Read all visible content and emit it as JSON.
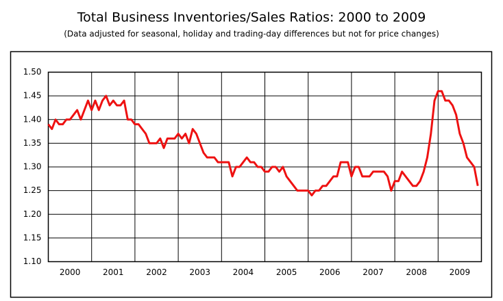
{
  "chart_data": {
    "type": "line",
    "title": "Total Business Inventories/Sales Ratios: 2000 to 2009",
    "subtitle": "(Data adjusted for seasonal, holiday and trading-day differences but not for price changes)",
    "categories": [
      null,
      null,
      null,
      null,
      null,
      null,
      "2000",
      null,
      null,
      null,
      null,
      null,
      null,
      null,
      null,
      null,
      null,
      null,
      "2001",
      null,
      null,
      null,
      null,
      null,
      null,
      null,
      null,
      null,
      null,
      null,
      "2002",
      null,
      null,
      null,
      null,
      null,
      null,
      null,
      null,
      null,
      null,
      null,
      "2003",
      null,
      null,
      null,
      null,
      null,
      null,
      null,
      null,
      null,
      null,
      null,
      "2004",
      null,
      null,
      null,
      null,
      null,
      null,
      null,
      null,
      null,
      null,
      null,
      "2005",
      null,
      null,
      null,
      null,
      null,
      null,
      null,
      null,
      null,
      null,
      null,
      "2006",
      null,
      null,
      null,
      null,
      null,
      null,
      null,
      null,
      null,
      null,
      null,
      "2007",
      null,
      null,
      null,
      null,
      null,
      null,
      null,
      null,
      null,
      null,
      null,
      "2008",
      null,
      null,
      null,
      null,
      null,
      null,
      null,
      null,
      null,
      null,
      null,
      "2009",
      null,
      null,
      null,
      null,
      null
    ],
    "series": [
      {
        "name": "Inventories/Sales Ratio",
        "color": "#ee1111",
        "values": [
          1.39,
          1.38,
          1.4,
          1.39,
          1.39,
          1.4,
          1.4,
          1.41,
          1.42,
          1.4,
          1.42,
          1.44,
          1.42,
          1.44,
          1.42,
          1.44,
          1.45,
          1.43,
          1.44,
          1.43,
          1.43,
          1.44,
          1.4,
          1.4,
          1.39,
          1.39,
          1.38,
          1.37,
          1.35,
          1.35,
          1.35,
          1.36,
          1.34,
          1.36,
          1.36,
          1.36,
          1.37,
          1.36,
          1.37,
          1.35,
          1.38,
          1.37,
          1.35,
          1.33,
          1.32,
          1.32,
          1.32,
          1.31,
          1.31,
          1.31,
          1.31,
          1.28,
          1.3,
          1.3,
          1.31,
          1.32,
          1.31,
          1.31,
          1.3,
          1.3,
          1.29,
          1.29,
          1.3,
          1.3,
          1.29,
          1.3,
          1.28,
          1.27,
          1.26,
          1.25,
          1.25,
          1.25,
          1.25,
          1.24,
          1.25,
          1.25,
          1.26,
          1.26,
          1.27,
          1.28,
          1.28,
          1.31,
          1.31,
          1.31,
          1.28,
          1.3,
          1.3,
          1.28,
          1.28,
          1.28,
          1.29,
          1.29,
          1.29,
          1.29,
          1.28,
          1.25,
          1.27,
          1.27,
          1.29,
          1.28,
          1.27,
          1.26,
          1.26,
          1.27,
          1.29,
          1.32,
          1.37,
          1.44,
          1.46,
          1.46,
          1.44,
          1.44,
          1.43,
          1.41,
          1.37,
          1.35,
          1.32,
          1.31,
          1.3,
          1.26
        ]
      }
    ],
    "ylim": [
      1.1,
      1.5
    ],
    "yticks": [
      {
        "value": 1.1,
        "label": "1.10"
      },
      {
        "value": 1.15,
        "label": "1.15"
      },
      {
        "value": 1.2,
        "label": "1.20"
      },
      {
        "value": 1.25,
        "label": "1.25"
      },
      {
        "value": 1.3,
        "label": "1.30"
      },
      {
        "value": 1.35,
        "label": "1.35"
      },
      {
        "value": 1.4,
        "label": "1.40"
      },
      {
        "value": 1.45,
        "label": "1.45"
      },
      {
        "value": 1.5,
        "label": "1.50"
      }
    ],
    "grid": true
  }
}
